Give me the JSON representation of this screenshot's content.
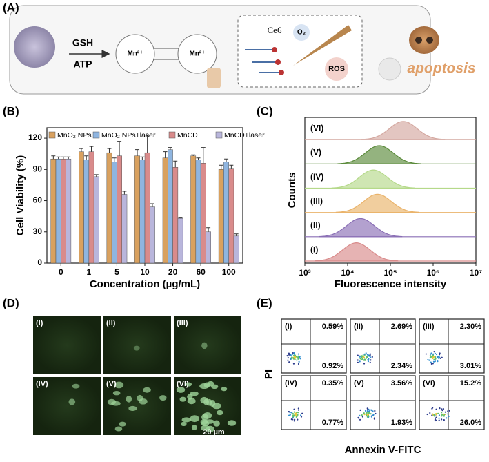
{
  "figure_labels": [
    "(A)",
    "(B)",
    "(C)",
    "(D)",
    "(E)"
  ],
  "schematic": {
    "reagents": [
      "GSH",
      "ATP"
    ],
    "ions": [
      "Mn²⁺",
      "Mn²⁺"
    ],
    "photosensitizer": "Ce6",
    "oxygen": "O₂",
    "product": "ROS",
    "outcome": "apoptosis"
  },
  "chart_data": [
    {
      "type": "bar",
      "x_label": "Concentration (µg/mL)",
      "y_label": "Cell Viability (%)",
      "categories": [
        "0",
        "1",
        "5",
        "10",
        "20",
        "60",
        "100"
      ],
      "series": [
        {
          "name": "MnO₂ NPs",
          "color": "#d9a15f",
          "values": [
            100,
            107,
            106,
            103,
            101,
            103,
            90
          ],
          "errors": [
            3,
            3,
            4,
            6,
            6,
            1,
            4
          ]
        },
        {
          "name": "MnO₂ NPs+laser",
          "color": "#8fb5e0",
          "values": [
            100,
            99,
            97,
            99,
            109,
            99,
            97
          ],
          "errors": [
            2,
            4,
            4,
            3,
            2,
            2,
            3
          ]
        },
        {
          "name": "MnCD",
          "color": "#d98b8b",
          "values": [
            100,
            107,
            103,
            106,
            92,
            96,
            91
          ],
          "errors": [
            2,
            5,
            14,
            16,
            6,
            15,
            3
          ]
        },
        {
          "name": "MnCD+laser",
          "color": "#b9b6dc",
          "values": [
            100,
            83,
            66,
            54,
            43,
            30,
            26
          ],
          "errors": [
            2,
            2,
            3,
            3,
            1,
            4,
            2
          ]
        }
      ],
      "ylim": [
        0,
        130
      ],
      "yticks": [
        0,
        30,
        60,
        90,
        120
      ]
    },
    {
      "type": "density",
      "x_label": "Fluorescence intensity",
      "y_label": "Counts",
      "log_scale": true,
      "xlim": [
        1000,
        10000000
      ],
      "xticks": [
        {
          "value": 1000,
          "label": "10³"
        },
        {
          "value": 10000,
          "label": "10⁴"
        },
        {
          "value": 100000,
          "label": "10⁵"
        },
        {
          "value": 1000000,
          "label": "10⁶"
        },
        {
          "value": 10000000,
          "label": "10⁷"
        }
      ],
      "series": [
        {
          "name": "(I)",
          "color": "#d98b8b",
          "peak": 16000
        },
        {
          "name": "(II)",
          "color": "#8a6fb5",
          "peak": 20000
        },
        {
          "name": "(III)",
          "color": "#eab36a",
          "peak": 50000
        },
        {
          "name": "(IV)",
          "color": "#b5d98a",
          "peak": 40000
        },
        {
          "name": "(V)",
          "color": "#5a8a3a",
          "peak": 55000
        },
        {
          "name": "(VI)",
          "color": "#d4a8a0",
          "peak": 200000
        }
      ]
    }
  ],
  "microscopy": {
    "panels": [
      "(I)",
      "(II)",
      "(III)",
      "(IV)",
      "(V)",
      "(VI)"
    ],
    "scale_bar": "20 µm"
  },
  "flow_cytometry": {
    "x_label": "Annexin V-FITC",
    "y_label": "PI",
    "panels": [
      {
        "label": "(I)",
        "upper_right": "0.59%",
        "lower_right": "0.92%"
      },
      {
        "label": "(II)",
        "upper_right": "2.69%",
        "lower_right": "2.34%"
      },
      {
        "label": "(III)",
        "upper_right": "2.30%",
        "lower_right": "3.01%"
      },
      {
        "label": "(IV)",
        "upper_right": "0.35%",
        "lower_right": "0.77%"
      },
      {
        "label": "(V)",
        "upper_right": "3.56%",
        "lower_right": "1.93%"
      },
      {
        "label": "(VI)",
        "upper_right": "15.2%",
        "lower_right": "26.0%"
      }
    ]
  }
}
